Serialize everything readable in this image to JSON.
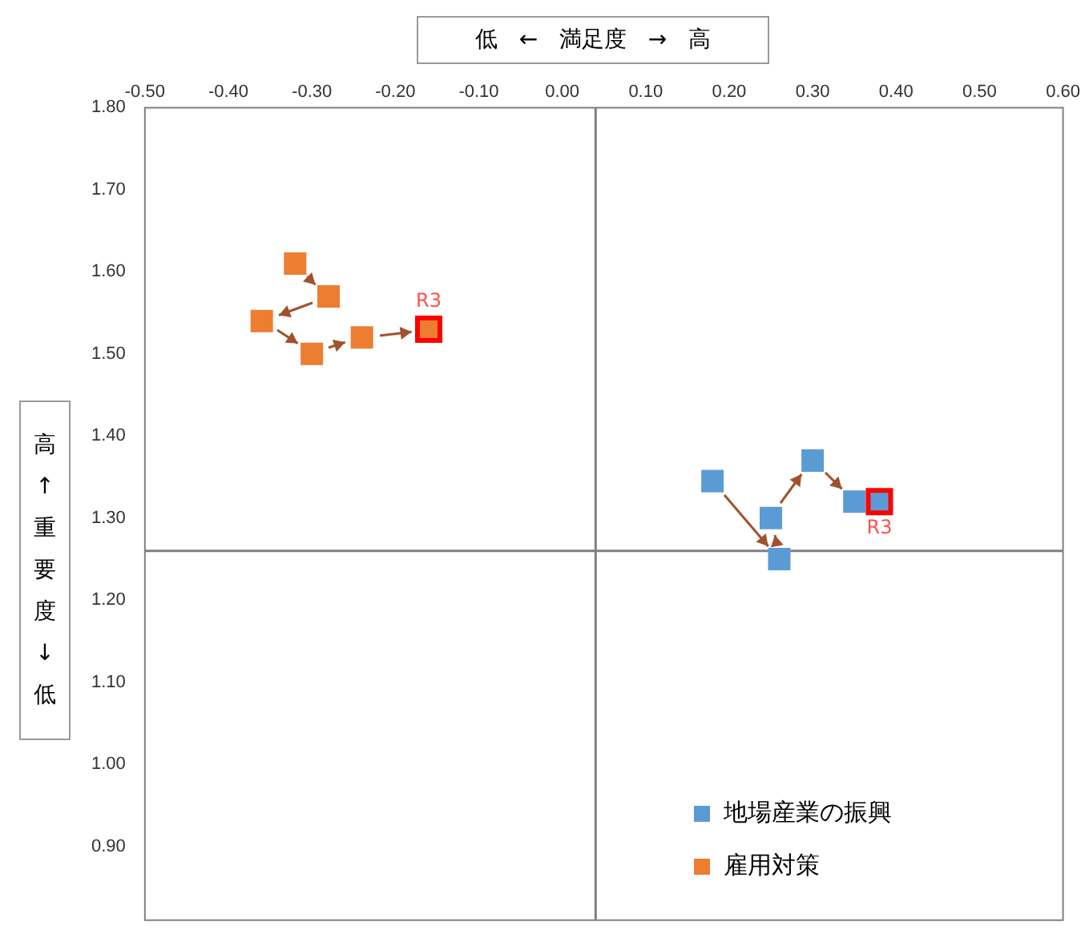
{
  "chart_data": {
    "type": "scatter",
    "xlabel": "低 ← 満足度 → 高",
    "ylabel": "高 ↑ 重要度 ↓ 低",
    "series": [
      {
        "name": "地場産業の振興",
        "color": "#5b9bd5",
        "x": [
          0.18,
          0.26,
          0.25,
          0.3,
          0.35,
          0.38
        ],
        "values": [
          1.345,
          1.25,
          1.3,
          1.37,
          1.32,
          1.32
        ]
      },
      {
        "name": "雇用対策",
        "color": "#ed7d31",
        "x": [
          -0.32,
          -0.28,
          -0.36,
          -0.3,
          -0.24,
          -0.16
        ],
        "values": [
          1.61,
          1.57,
          1.54,
          1.5,
          1.52,
          1.53
        ]
      }
    ],
    "xlim": [
      -0.5,
      0.6
    ],
    "xticks": [
      {
        "value": -0.5,
        "label": "-0.50"
      },
      {
        "value": -0.4,
        "label": "-0.40"
      },
      {
        "value": -0.3,
        "label": "-0.30"
      },
      {
        "value": -0.2,
        "label": "-0.20"
      },
      {
        "value": -0.1,
        "label": "-0.10"
      },
      {
        "value": 0,
        "label": "0.00"
      },
      {
        "value": 0.1,
        "label": "0.10"
      },
      {
        "value": 0.2,
        "label": "0.20"
      },
      {
        "value": 0.3,
        "label": "0.30"
      },
      {
        "value": 0.4,
        "label": "0.40"
      },
      {
        "value": 0.5,
        "label": "0.50"
      },
      {
        "value": 0.6,
        "label": "0.60"
      }
    ],
    "ylim": [
      0.81,
      1.8
    ],
    "yticks": [
      {
        "value": 0.9,
        "label": "0.90"
      },
      {
        "value": 1.0,
        "label": "1.00"
      },
      {
        "value": 1.1,
        "label": "1.10"
      },
      {
        "value": 1.2,
        "label": "1.20"
      },
      {
        "value": 1.3,
        "label": "1.30"
      },
      {
        "value": 1.4,
        "label": "1.40"
      },
      {
        "value": 1.5,
        "label": "1.50"
      },
      {
        "value": 1.6,
        "label": "1.60"
      },
      {
        "value": 1.7,
        "label": "1.70"
      },
      {
        "value": 1.8,
        "label": "1.80"
      }
    ],
    "ref_lines": [
      {
        "axis": "x",
        "value": 0.04,
        "color": "#808080"
      },
      {
        "axis": "y",
        "value": 1.26,
        "color": "#808080"
      }
    ],
    "annotations": [
      {
        "text": "R3",
        "x": 0.38,
        "y": 1.32
      },
      {
        "text": "R3",
        "x": -0.16,
        "y": 1.53
      }
    ],
    "marker": "square",
    "grid": false,
    "legend": "bottom right"
  }
}
